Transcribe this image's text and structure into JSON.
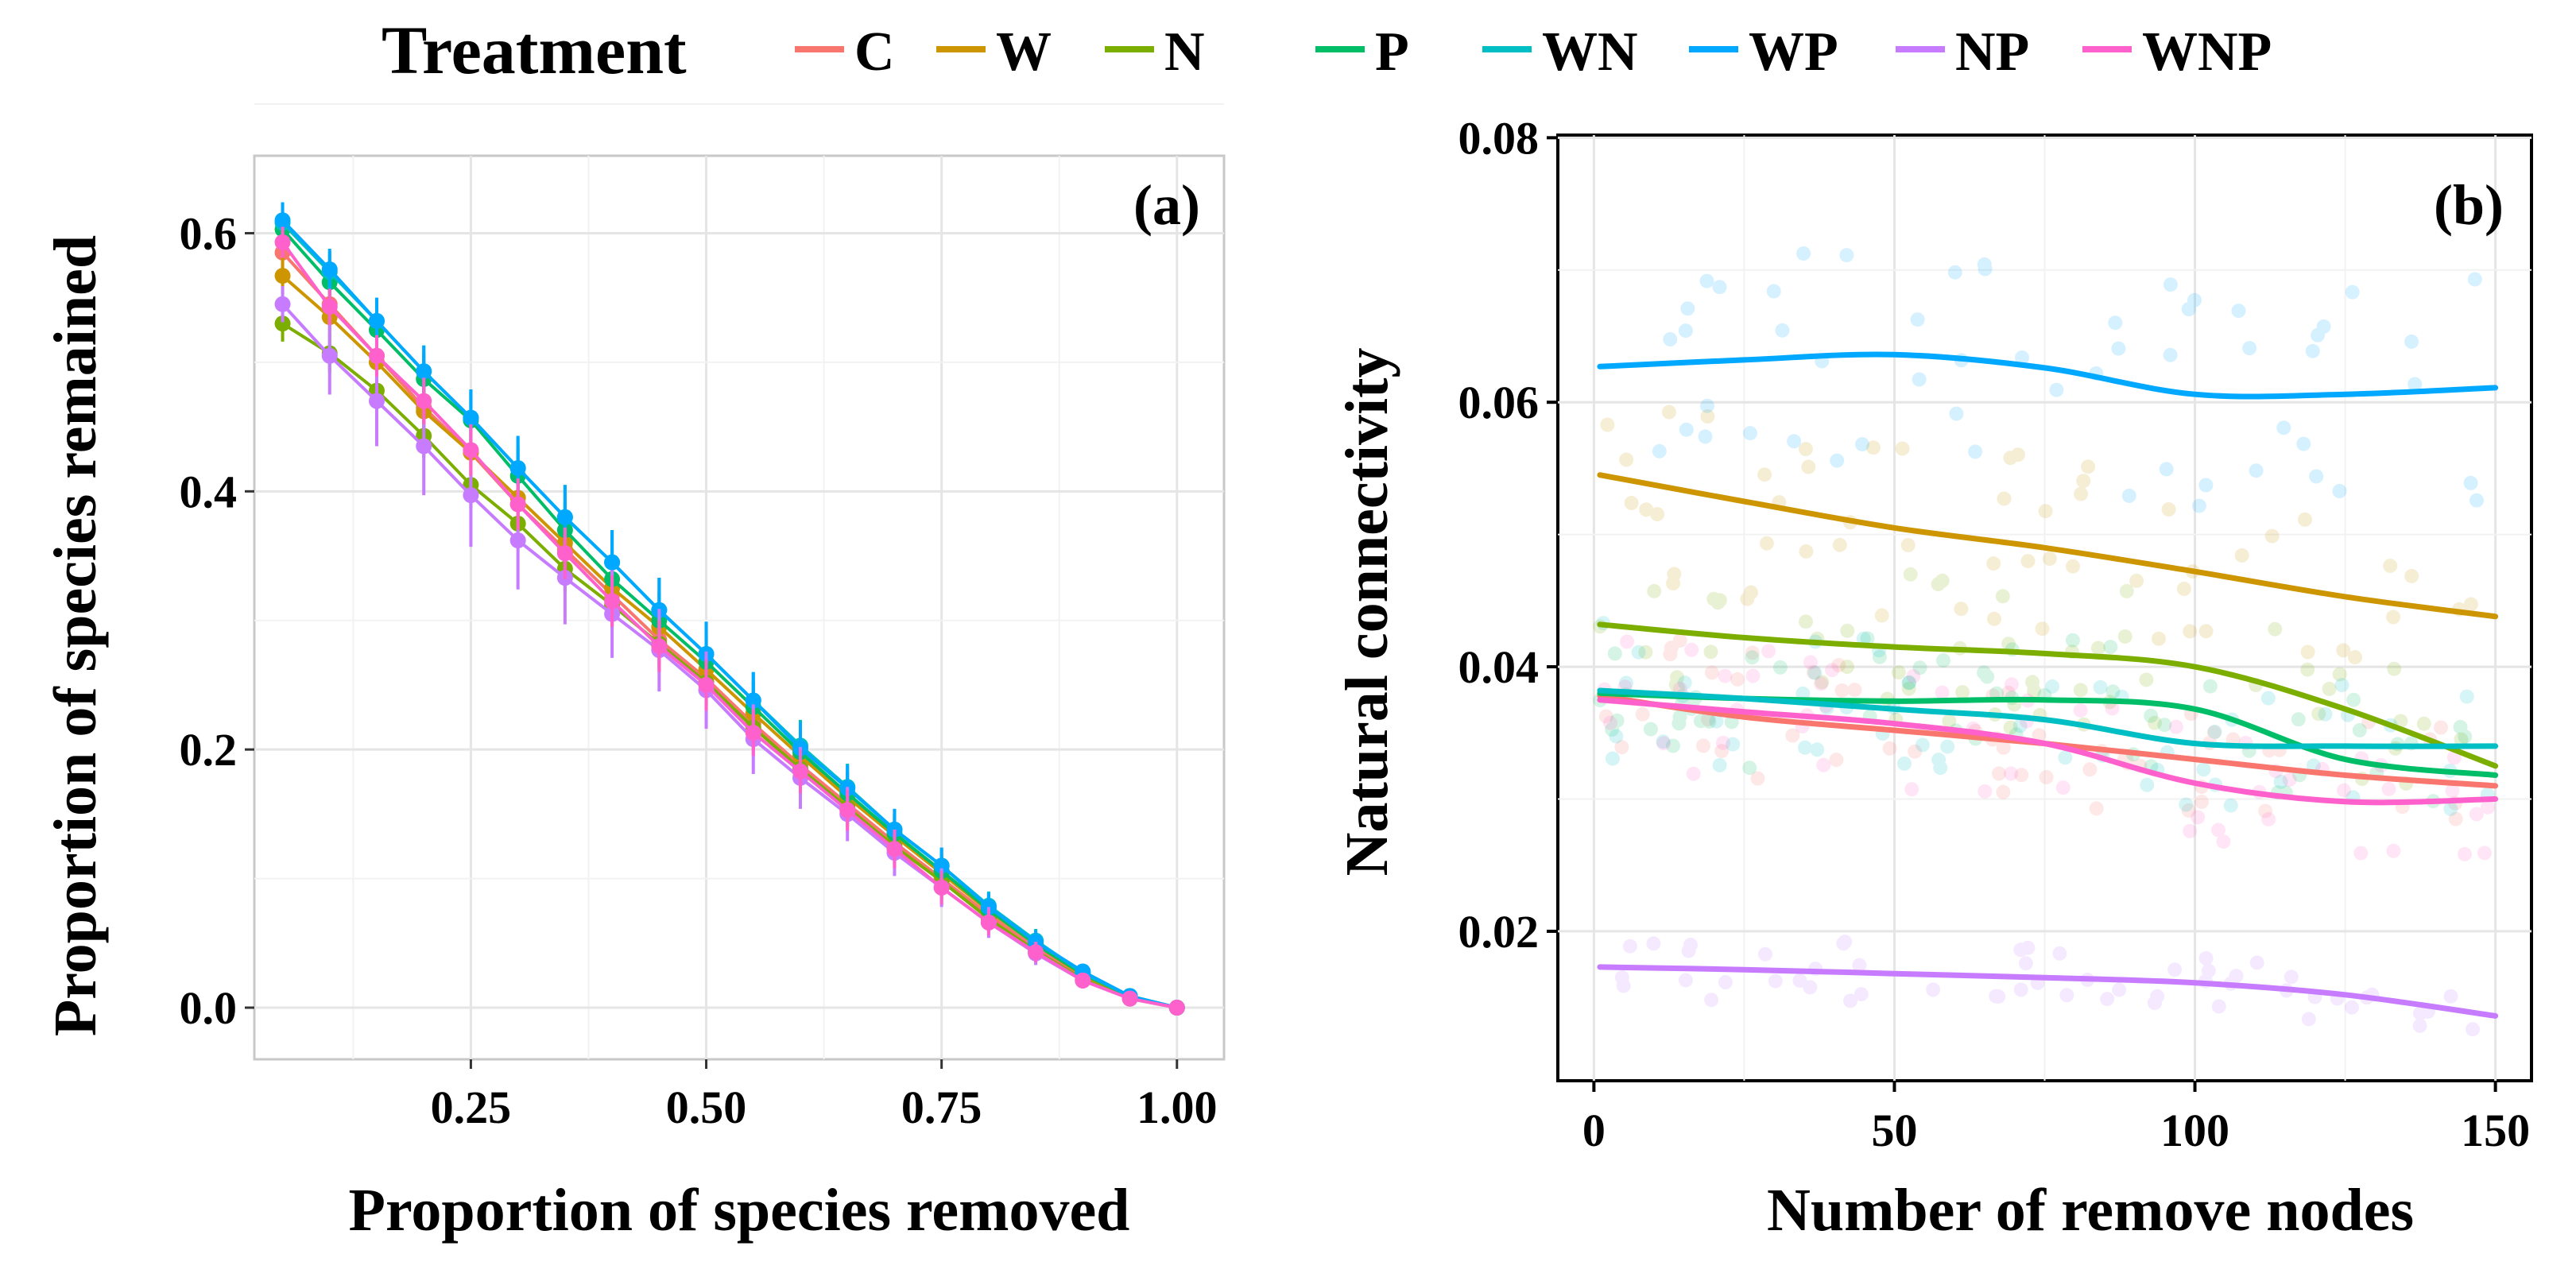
{
  "legend": {
    "title": "Treatment",
    "items": [
      {
        "label": "C",
        "color": "#F8766D"
      },
      {
        "label": "W",
        "color": "#CD9600"
      },
      {
        "label": "N",
        "color": "#7CAE00"
      },
      {
        "label": "P",
        "color": "#00BE67"
      },
      {
        "label": "WN",
        "color": "#00BFC4"
      },
      {
        "label": "WP",
        "color": "#00A9FF"
      },
      {
        "label": "NP",
        "color": "#C77CFF"
      },
      {
        "label": "WNP",
        "color": "#FF61CC"
      }
    ]
  },
  "chart_data": [
    {
      "type": "line",
      "panel": "(a)",
      "title": "",
      "xlabel": "Proportion of species removed",
      "ylabel": "Proportion of species remained",
      "xlim": [
        0.02,
        1.05
      ],
      "ylim": [
        -0.04,
        0.66
      ],
      "x_ticks": [
        "0.25",
        "0.50",
        "0.75",
        "1.00"
      ],
      "y_ticks": [
        "0.0",
        "0.2",
        "0.4",
        "0.6"
      ],
      "grid": true,
      "x": [
        0.05,
        0.1,
        0.15,
        0.2,
        0.25,
        0.3,
        0.35,
        0.4,
        0.45,
        0.5,
        0.55,
        0.6,
        0.65,
        0.7,
        0.75,
        0.8,
        0.85,
        0.9,
        0.95,
        1.0
      ],
      "series": [
        {
          "name": "C",
          "values": [
            0.585,
            0.545,
            0.505,
            0.465,
            0.43,
            0.39,
            0.355,
            0.32,
            0.285,
            0.255,
            0.22,
            0.188,
            0.158,
            0.128,
            0.1,
            0.072,
            0.046,
            0.024,
            0.008,
            0.0
          ],
          "errors": [
            0.012,
            0.014,
            0.015,
            0.016,
            0.018,
            0.018,
            0.018,
            0.018,
            0.018,
            0.018,
            0.017,
            0.016,
            0.015,
            0.014,
            0.013,
            0.01,
            0.008,
            0.006,
            0.003,
            0.0
          ]
        },
        {
          "name": "W",
          "values": [
            0.567,
            0.535,
            0.5,
            0.462,
            0.43,
            0.395,
            0.36,
            0.325,
            0.295,
            0.262,
            0.228,
            0.195,
            0.163,
            0.133,
            0.104,
            0.075,
            0.049,
            0.025,
            0.008,
            0.0
          ],
          "errors": [
            0.014,
            0.015,
            0.016,
            0.017,
            0.018,
            0.018,
            0.018,
            0.018,
            0.018,
            0.018,
            0.017,
            0.016,
            0.015,
            0.014,
            0.013,
            0.01,
            0.008,
            0.006,
            0.003,
            0.0
          ]
        },
        {
          "name": "N",
          "values": [
            0.53,
            0.507,
            0.478,
            0.443,
            0.405,
            0.375,
            0.34,
            0.312,
            0.282,
            0.252,
            0.217,
            0.185,
            0.155,
            0.125,
            0.098,
            0.069,
            0.044,
            0.022,
            0.007,
            0.0
          ],
          "errors": [
            0.014,
            0.015,
            0.016,
            0.017,
            0.018,
            0.018,
            0.018,
            0.018,
            0.018,
            0.018,
            0.017,
            0.016,
            0.015,
            0.014,
            0.013,
            0.01,
            0.008,
            0.006,
            0.003,
            0.0
          ]
        },
        {
          "name": "P",
          "values": [
            0.603,
            0.562,
            0.525,
            0.487,
            0.455,
            0.412,
            0.37,
            0.332,
            0.3,
            0.268,
            0.233,
            0.198,
            0.166,
            0.135,
            0.106,
            0.076,
            0.049,
            0.026,
            0.009,
            0.0
          ],
          "errors": [
            0.014,
            0.016,
            0.018,
            0.02,
            0.022,
            0.022,
            0.022,
            0.022,
            0.022,
            0.022,
            0.02,
            0.018,
            0.016,
            0.015,
            0.013,
            0.01,
            0.008,
            0.006,
            0.003,
            0.0
          ]
        },
        {
          "name": "WN",
          "values": [
            0.608,
            0.57,
            0.532,
            0.493,
            0.457,
            0.418,
            0.38,
            0.345,
            0.308,
            0.274,
            0.238,
            0.203,
            0.171,
            0.138,
            0.11,
            0.079,
            0.052,
            0.027,
            0.009,
            0.0
          ],
          "errors": [
            0.014,
            0.016,
            0.018,
            0.02,
            0.022,
            0.024,
            0.025,
            0.025,
            0.025,
            0.025,
            0.022,
            0.02,
            0.018,
            0.016,
            0.014,
            0.011,
            0.009,
            0.006,
            0.003,
            0.0
          ]
        },
        {
          "name": "WP",
          "values": [
            0.61,
            0.572,
            0.532,
            0.493,
            0.457,
            0.418,
            0.38,
            0.345,
            0.308,
            0.274,
            0.238,
            0.201,
            0.17,
            0.138,
            0.11,
            0.078,
            0.051,
            0.028,
            0.009,
            0.0
          ],
          "errors": [
            0.014,
            0.016,
            0.018,
            0.02,
            0.022,
            0.025,
            0.025,
            0.025,
            0.025,
            0.025,
            0.022,
            0.02,
            0.018,
            0.016,
            0.014,
            0.011,
            0.009,
            0.006,
            0.003,
            0.0
          ]
        },
        {
          "name": "NP",
          "values": [
            0.545,
            0.505,
            0.47,
            0.435,
            0.397,
            0.362,
            0.333,
            0.305,
            0.277,
            0.246,
            0.208,
            0.178,
            0.15,
            0.12,
            0.093,
            0.066,
            0.042,
            0.021,
            0.007,
            0.0
          ],
          "errors": [
            0.014,
            0.03,
            0.035,
            0.038,
            0.04,
            0.038,
            0.036,
            0.034,
            0.032,
            0.03,
            0.027,
            0.024,
            0.021,
            0.018,
            0.015,
            0.012,
            0.009,
            0.006,
            0.003,
            0.0
          ]
        },
        {
          "name": "WNP",
          "values": [
            0.593,
            0.543,
            0.505,
            0.47,
            0.432,
            0.39,
            0.352,
            0.315,
            0.28,
            0.25,
            0.213,
            0.183,
            0.153,
            0.123,
            0.093,
            0.066,
            0.043,
            0.021,
            0.007,
            0.0
          ],
          "errors": [
            0.012,
            0.014,
            0.016,
            0.018,
            0.02,
            0.02,
            0.02,
            0.02,
            0.02,
            0.02,
            0.018,
            0.017,
            0.016,
            0.015,
            0.013,
            0.01,
            0.008,
            0.006,
            0.003,
            0.0
          ]
        }
      ]
    },
    {
      "type": "line",
      "panel": "(b)",
      "title": "",
      "xlabel": "Number of remove nodes",
      "ylabel": "Natural connectivity",
      "xlim": [
        -6,
        156
      ],
      "ylim": [
        0.0087,
        0.0802
      ],
      "x_ticks": [
        "0",
        "50",
        "100",
        "150"
      ],
      "y_ticks": [
        "0.02",
        "0.04",
        "0.06",
        "0.08"
      ],
      "grid": true,
      "x": [
        1,
        25,
        50,
        75,
        100,
        125,
        150
      ],
      "series": [
        {
          "name": "C",
          "values": [
            0.0378,
            0.0362,
            0.0352,
            0.0342,
            0.033,
            0.0318,
            0.031
          ]
        },
        {
          "name": "W",
          "values": [
            0.0545,
            0.0525,
            0.0505,
            0.049,
            0.0472,
            0.0453,
            0.0438
          ]
        },
        {
          "name": "N",
          "values": [
            0.0432,
            0.0422,
            0.0415,
            0.041,
            0.04,
            0.0368,
            0.0325
          ]
        },
        {
          "name": "P",
          "values": [
            0.038,
            0.0376,
            0.0374,
            0.0375,
            0.0368,
            0.033,
            0.0318
          ]
        },
        {
          "name": "WN",
          "values": [
            0.0382,
            0.0376,
            0.0368,
            0.036,
            0.0342,
            0.034,
            0.034
          ]
        },
        {
          "name": "WP",
          "values": [
            0.0627,
            0.0632,
            0.0636,
            0.0626,
            0.0606,
            0.0606,
            0.0611
          ]
        },
        {
          "name": "NP",
          "values": [
            0.0173,
            0.0171,
            0.0168,
            0.0165,
            0.0161,
            0.0152,
            0.0136
          ]
        },
        {
          "name": "WNP",
          "values": [
            0.0375,
            0.0366,
            0.0357,
            0.0342,
            0.0312,
            0.0298,
            0.03
          ]
        }
      ]
    }
  ]
}
